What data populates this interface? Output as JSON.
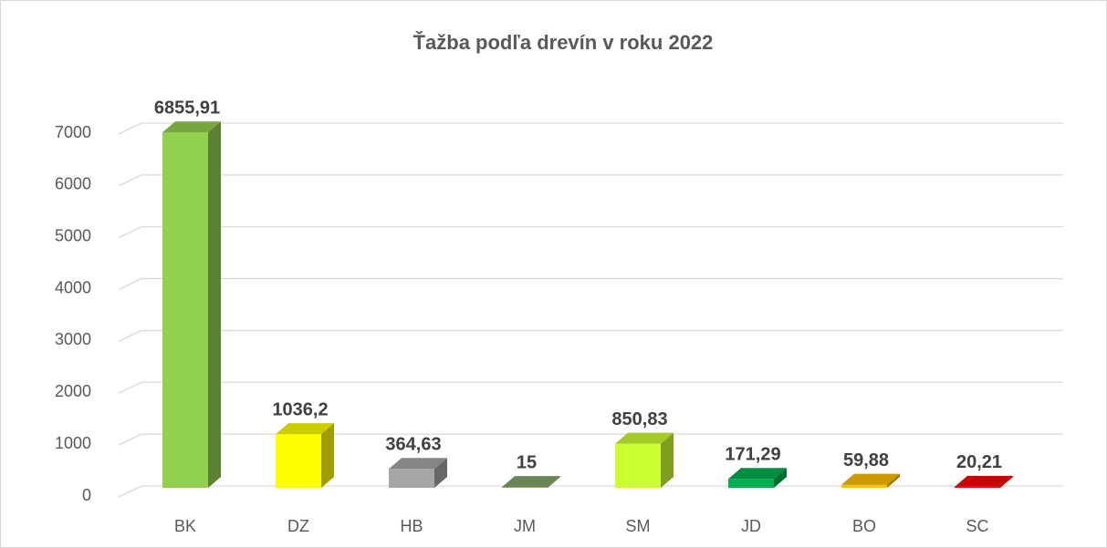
{
  "chart_data": {
    "type": "bar3d",
    "title": "Ťažba podľa drevín v roku 2022",
    "categories": [
      "BK",
      "DZ",
      "HB",
      "JM",
      "SM",
      "JD",
      "BO",
      "SC"
    ],
    "values": [
      6855.91,
      1036.2,
      364.63,
      15,
      850.83,
      171.29,
      59.88,
      20.21
    ],
    "value_labels": [
      "6855,91",
      "1036,2",
      "364,63",
      "15",
      "850,83",
      "171,29",
      "59,88",
      "20,21"
    ],
    "colors": [
      "#92d050",
      "#ffff00",
      "#a6a6a6",
      "#86a86c",
      "#ccff33",
      "#00b050",
      "#ffc000",
      "#ff0000"
    ],
    "ylim": [
      0,
      7000
    ],
    "yticks": [
      0,
      1000,
      2000,
      3000,
      4000,
      5000,
      6000,
      7000
    ],
    "grid": true
  }
}
